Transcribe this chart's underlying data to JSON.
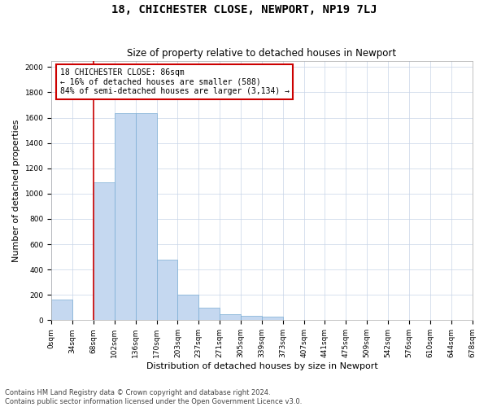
{
  "title": "18, CHICHESTER CLOSE, NEWPORT, NP19 7LJ",
  "subtitle": "Size of property relative to detached houses in Newport",
  "xlabel": "Distribution of detached houses by size in Newport",
  "ylabel": "Number of detached properties",
  "bar_values": [
    165,
    0,
    1090,
    1635,
    1635,
    475,
    200,
    100,
    45,
    35,
    25,
    0,
    0,
    0,
    0,
    0,
    0,
    0,
    0,
    0
  ],
  "bin_labels": [
    "0sqm",
    "34sqm",
    "68sqm",
    "102sqm",
    "136sqm",
    "170sqm",
    "203sqm",
    "237sqm",
    "271sqm",
    "305sqm",
    "339sqm",
    "373sqm",
    "407sqm",
    "441sqm",
    "475sqm",
    "509sqm",
    "542sqm",
    "576sqm",
    "610sqm",
    "644sqm",
    "678sqm"
  ],
  "bar_color": "#c5d8f0",
  "bar_edge_color": "#7aadd4",
  "vline_x": 2.0,
  "vline_color": "#cc0000",
  "annotation_line1": "18 CHICHESTER CLOSE: 86sqm",
  "annotation_line2": "← 16% of detached houses are smaller (588)",
  "annotation_line3": "84% of semi-detached houses are larger (3,134) →",
  "annotation_box_color": "#cc0000",
  "ylim": [
    0,
    2050
  ],
  "yticks": [
    0,
    200,
    400,
    600,
    800,
    1000,
    1200,
    1400,
    1600,
    1800,
    2000
  ],
  "footer_line1": "Contains HM Land Registry data © Crown copyright and database right 2024.",
  "footer_line2": "Contains public sector information licensed under the Open Government Licence v3.0.",
  "bg_color": "#ffffff",
  "grid_color": "#c8d4e8",
  "title_fontsize": 10,
  "subtitle_fontsize": 8.5,
  "axis_label_fontsize": 8,
  "tick_fontsize": 6.5,
  "annotation_fontsize": 7,
  "footer_fontsize": 6
}
